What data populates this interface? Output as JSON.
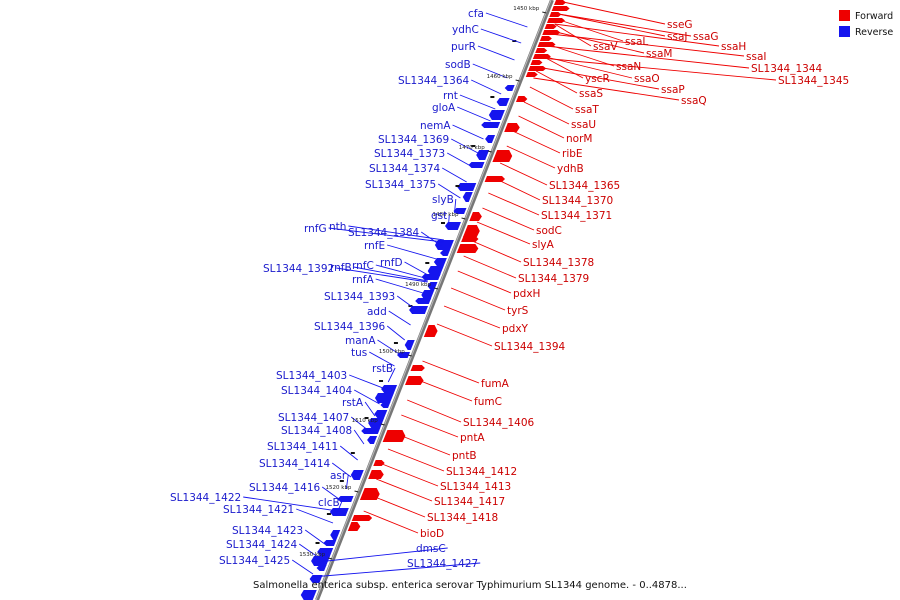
{
  "caption": "Salmonella enterica subsp. enterica serovar Typhimurium SL1344 genome. - 0..4878...",
  "colors": {
    "forward": "#ee0000",
    "reverse": "#1515ee",
    "backbone": "#888888"
  },
  "legend": [
    {
      "label": "Forward",
      "color": "#ee0000"
    },
    {
      "label": "Reverse",
      "color": "#1515ee"
    }
  ],
  "ticks": [
    "1450 kbp",
    "1460 kbp",
    "1470 kbp",
    "1480 kbp",
    "1490 kbp",
    "1500 kbp",
    "1510 kbp",
    "1520 kbp",
    "1530 kbp"
  ],
  "reverse_genes": [
    "cfa",
    "ydhC",
    "purR",
    "sodB",
    "SL1344_1364",
    "rnt",
    "gloA",
    "nemA",
    "SL1344_1369",
    "SL1344_1373",
    "SL1344_1374",
    "SL1344_1375",
    "slyB",
    "gst",
    "rnfG",
    "nth",
    "SL1344_1384",
    "rnfE",
    "rnfD",
    "rnfC",
    "SL1344_1392",
    "rnfB",
    "rnfA",
    "SL1344_1393",
    "add",
    "SL1344_1396",
    "manA",
    "tus",
    "rstB",
    "SL1344_1403",
    "SL1344_1404",
    "rstA",
    "SL1344_1407",
    "SL1344_1408",
    "SL1344_1411",
    "SL1344_1414",
    "asr",
    "SL1344_1416",
    "clcB",
    "SL1344_1422",
    "SL1344_1421",
    "SL1344_1423",
    "SL1344_1424",
    "SL1344_1425",
    "dmsC",
    "SL1344_1427"
  ],
  "forward_genes": [
    "sseG",
    "ssaJ",
    "ssaG",
    "ssaL",
    "ssaH",
    "ssaV",
    "ssaM",
    "ssaI",
    "SL1344_1344",
    "SL1344_1345",
    "ssaN",
    "yscR",
    "ssaO",
    "ssaP",
    "ssaQ",
    "ssaS",
    "ssaT",
    "ssaU",
    "norM",
    "ribE",
    "ydhB",
    "SL1344_1365",
    "SL1344_1370",
    "SL1344_1371",
    "sodC",
    "slyA",
    "SL1344_1378",
    "SL1344_1379",
    "pdxH",
    "tyrS",
    "pdxY",
    "SL1344_1394",
    "fumA",
    "fumC",
    "SL1344_1406",
    "pntA",
    "pntB",
    "SL1344_1412",
    "SL1344_1413",
    "SL1344_1417",
    "SL1344_1418",
    "bioD"
  ]
}
